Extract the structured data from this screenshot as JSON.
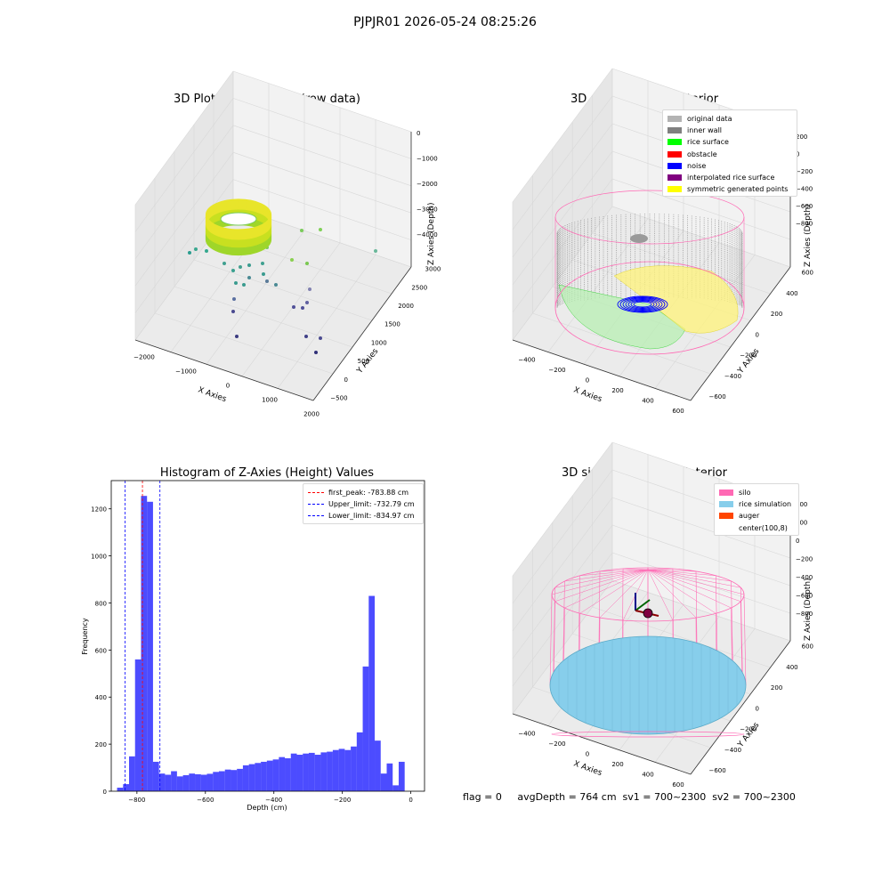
{
  "suptitle": "PJPJR01 2026-05-24 08:25:26",
  "panels": {
    "raw": {
      "title": "3D Plot of Silo Interior(row data)",
      "xlabel": "X Axies",
      "ylabel": "Y Axies",
      "zlabel": "Z Axies (Depth)",
      "xticks": [
        "−2000",
        "−1000",
        "0",
        "1000",
        "2000"
      ],
      "yticks": [
        "−500",
        "0",
        "500",
        "1000",
        "1500",
        "2000",
        "2500",
        "3000"
      ],
      "zticks": [
        "0",
        "−1000",
        "−2000",
        "−3000",
        "−4000"
      ]
    },
    "classify": {
      "title": "3D classify of Silo Interior",
      "xlabel": "X Axies",
      "ylabel": "Y Axies",
      "zlabel": "Z Axies (Depth)",
      "xticks": [
        "−400",
        "−200",
        "0",
        "200",
        "400",
        "600"
      ],
      "yticks": [
        "−600",
        "−400",
        "−200",
        "0",
        "200",
        "400",
        "600"
      ],
      "zticks": [
        "200",
        "0",
        "−200",
        "−400",
        "−600",
        "−800"
      ],
      "legend": [
        {
          "label": "original data",
          "color": "#b3b3b3"
        },
        {
          "label": "inner wall",
          "color": "#808080"
        },
        {
          "label": "rice surface",
          "color": "#00ff00"
        },
        {
          "label": "obstacle",
          "color": "#ff0000"
        },
        {
          "label": "noise",
          "color": "#0000ff"
        },
        {
          "label": "interpolated rice surface",
          "color": "#800080"
        },
        {
          "label": "symmetric generated points",
          "color": "#ffff00"
        }
      ]
    },
    "simulation": {
      "title": "3D simulation of Silo Interior",
      "xlabel": "X Axies",
      "ylabel": "Y Axies",
      "zlabel": "Z Axies (Depth)",
      "xticks": [
        "−400",
        "−200",
        "0",
        "200",
        "400",
        "600"
      ],
      "yticks": [
        "−600",
        "−400",
        "−200",
        "0",
        "200",
        "400",
        "600"
      ],
      "zticks": [
        "400",
        "200",
        "0",
        "−200",
        "−400",
        "−600",
        "−800"
      ],
      "legend": [
        {
          "label": "silo",
          "color": "#ff69b4"
        },
        {
          "label": "rice simulation",
          "color": "#87ceeb"
        },
        {
          "label": "auger",
          "color": "#ff4500"
        },
        {
          "label": "center(100,8)",
          "color": "#ffffff"
        }
      ]
    }
  },
  "status_line": "flag = 0     avgDepth = 764 cm  sv1 = 700~2300  sv2 = 700~2300",
  "chart_data": {
    "type": "bar",
    "title": "Histogram of Z-Axies (Height) Values",
    "xlabel": "Depth (cm)",
    "ylabel": "Frequency",
    "xlim": [
      -875,
      40
    ],
    "ylim": [
      0,
      1320
    ],
    "xticks": [
      -800,
      -600,
      -400,
      -200,
      0
    ],
    "yticks": [
      0,
      200,
      400,
      600,
      800,
      1000,
      1200
    ],
    "bar_color": "#0000ff",
    "bin_width": 17.5,
    "bin_starts": [
      -858,
      -840.5,
      -823,
      -805.5,
      -788,
      -770.5,
      -753,
      -735.5,
      -718,
      -700.5,
      -683,
      -665.5,
      -648,
      -630.5,
      -613,
      -595.5,
      -578,
      -560.5,
      -543,
      -525.5,
      -508,
      -490.5,
      -473,
      -455.5,
      -438,
      -420.5,
      -403,
      -385.5,
      -368,
      -350.5,
      -333,
      -315.5,
      -298,
      -280.5,
      -263,
      -245.5,
      -228,
      -210.5,
      -193,
      -175.5,
      -158,
      -140.5,
      -123,
      -105.5,
      -88,
      -70.5,
      -53,
      -35.5,
      -18,
      -0.5
    ],
    "values": [
      15,
      30,
      148,
      560,
      1255,
      1230,
      125,
      75,
      70,
      85,
      63,
      68,
      75,
      72,
      70,
      74,
      82,
      85,
      92,
      90,
      95,
      110,
      115,
      120,
      125,
      130,
      135,
      145,
      140,
      160,
      155,
      160,
      163,
      155,
      165,
      168,
      175,
      180,
      175,
      190,
      250,
      530,
      830,
      215,
      75,
      118,
      25,
      125,
      0,
      0
    ],
    "reference_lines": [
      {
        "label": "first_peak: -783.88 cm",
        "x": -783.88,
        "color": "#ff0000"
      },
      {
        "label": "Upper_limit: -732.79 cm",
        "x": -732.79,
        "color": "#0000ff"
      },
      {
        "label": "Lower_limit: -834.97 cm",
        "x": -834.97,
        "color": "#0000ff"
      }
    ],
    "legend_position": "top-right"
  }
}
